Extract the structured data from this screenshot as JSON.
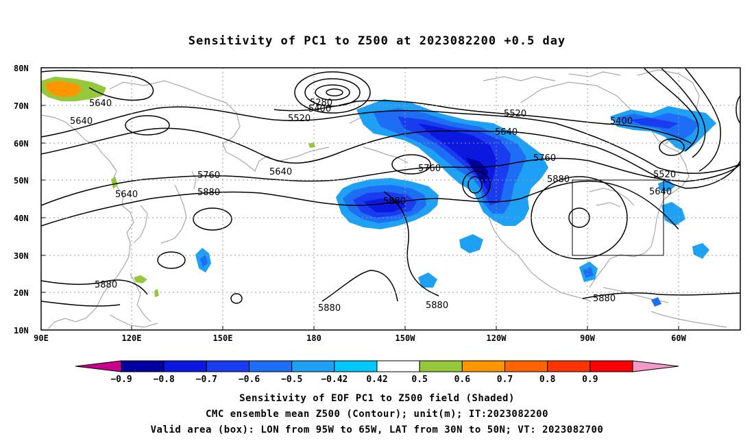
{
  "title": "Sensitivity of PC1 to Z500 at 2023082200 +0.5 day",
  "map": {
    "lat_labels": [
      "80N",
      "70N",
      "60N",
      "50N",
      "40N",
      "30N",
      "20N",
      "10N"
    ],
    "lon_labels": [
      "90E",
      "120E",
      "150E",
      "180",
      "150W",
      "120W",
      "90W",
      "60W"
    ],
    "contour_labels": [
      "5640",
      "5640",
      "5280",
      "5400",
      "5520",
      "5520",
      "5640",
      "5400",
      "5640",
      "5760",
      "5760",
      "5880",
      "5760",
      "5880",
      "5880",
      "5520",
      "5640",
      "5640",
      "5880",
      "5880",
      "5880",
      "5880"
    ],
    "valid_box": {
      "lon_min": "95W",
      "lon_max": "65W",
      "lat_min": "30N",
      "lat_max": "50N"
    }
  },
  "colorbar": {
    "labels": [
      "-0.9",
      "-0.8",
      "-0.7",
      "-0.6",
      "-0.5",
      "-0.42",
      "0.42",
      "0.5",
      "0.6",
      "0.7",
      "0.8",
      "0.9"
    ],
    "colors": [
      "#c9008b",
      "#0000a0",
      "#0a18e0",
      "#1a3cf0",
      "#1e6ef5",
      "#1ea0f5",
      "#00c8ff",
      "#ffffff",
      "#96c83c",
      "#ff9600",
      "#ff6400",
      "#ff3200",
      "#ff0000",
      "#f49ac8"
    ]
  },
  "footer": {
    "line1": "Sensitivity of EOF PC1 to Z500 field (Shaded)",
    "line2": "CMC ensemble mean Z500 (Contour); unit(m); IT:2023082200",
    "line3": "Valid area (box): LON from 95W to 65W, LAT from 30N to 50N; VT: 2023082700"
  }
}
